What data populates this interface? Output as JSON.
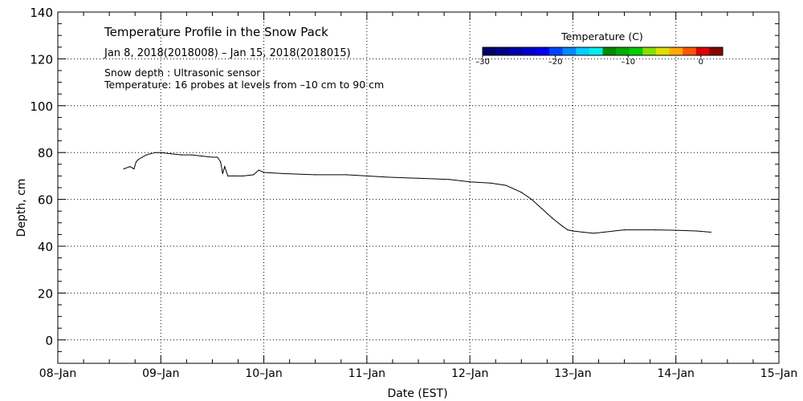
{
  "chart_data": {
    "type": "line",
    "title": "Temperature Profile in the Snow Pack",
    "subtitle": "Jan  8, 2018(2018008) – Jan 15, 2018(2018015)",
    "annotations": [
      "Snow depth : Ultrasonic sensor",
      "Temperature: 16 probes at levels from –10 cm to 90 cm"
    ],
    "xlabel": "Date (EST)",
    "ylabel": "Depth, cm",
    "xlim": [
      0,
      7
    ],
    "ylim": [
      -10,
      140
    ],
    "grid": true,
    "x_ticks": [
      {
        "value": 0,
        "label": "08–Jan"
      },
      {
        "value": 1,
        "label": "09–Jan"
      },
      {
        "value": 2,
        "label": "10–Jan"
      },
      {
        "value": 3,
        "label": "11–Jan"
      },
      {
        "value": 4,
        "label": "12–Jan"
      },
      {
        "value": 5,
        "label": "13–Jan"
      },
      {
        "value": 6,
        "label": "14–Jan"
      },
      {
        "value": 7,
        "label": "15–Jan"
      }
    ],
    "y_ticks": [
      {
        "value": 0,
        "label": "0"
      },
      {
        "value": 20,
        "label": "20"
      },
      {
        "value": 40,
        "label": "40"
      },
      {
        "value": 60,
        "label": "60"
      },
      {
        "value": 80,
        "label": "80"
      },
      {
        "value": 100,
        "label": "100"
      },
      {
        "value": 120,
        "label": "120"
      },
      {
        "value": 140,
        "label": "140"
      }
    ],
    "series": [
      {
        "name": "Snow depth",
        "color": "#000000",
        "x": [
          0.64,
          0.7,
          0.74,
          0.76,
          0.78,
          0.82,
          0.86,
          0.9,
          0.95,
          1.0,
          1.1,
          1.2,
          1.3,
          1.4,
          1.5,
          1.55,
          1.58,
          1.6,
          1.62,
          1.65,
          1.7,
          1.8,
          1.9,
          1.95,
          2.0,
          2.2,
          2.5,
          2.8,
          3.0,
          3.2,
          3.5,
          3.8,
          4.0,
          4.2,
          4.35,
          4.5,
          4.6,
          4.7,
          4.8,
          4.9,
          4.95,
          5.0,
          5.1,
          5.2,
          5.4,
          5.5,
          5.8,
          6.0,
          6.2,
          6.34
        ],
        "y": [
          73,
          74,
          73,
          76,
          77,
          78,
          79,
          79.5,
          80,
          80,
          79.5,
          79,
          79,
          78.5,
          78,
          78,
          76,
          71,
          74,
          70,
          70,
          70,
          70.5,
          72.5,
          71.5,
          71,
          70.5,
          70.5,
          70,
          69.5,
          69,
          68.5,
          67.5,
          67,
          66,
          63,
          60,
          56,
          52,
          48.5,
          47,
          46.5,
          46,
          45.5,
          46.5,
          47,
          47,
          46.8,
          46.5,
          46
        ]
      }
    ],
    "colorbar": {
      "title": "Temperature (C)",
      "range": [
        -30,
        3
      ],
      "ticks": [
        {
          "value": -30,
          "label": "–30"
        },
        {
          "value": -20,
          "label": "–20"
        },
        {
          "value": -10,
          "label": "–10"
        },
        {
          "value": 0,
          "label": "0"
        }
      ],
      "colors": [
        "#000066",
        "#000088",
        "#0000aa",
        "#0000cc",
        "#0000ee",
        "#0044ff",
        "#0088ff",
        "#00ccff",
        "#00eeee",
        "#008800",
        "#00aa00",
        "#00cc00",
        "#88dd00",
        "#dddd00",
        "#ffaa00",
        "#ff5500",
        "#dd0000",
        "#880000"
      ]
    }
  }
}
